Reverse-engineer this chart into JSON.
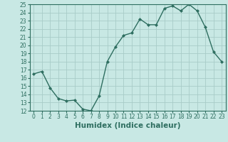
{
  "xlabel": "Humidex (Indice chaleur)",
  "x": [
    0,
    1,
    2,
    3,
    4,
    5,
    6,
    7,
    8,
    9,
    10,
    11,
    12,
    13,
    14,
    15,
    16,
    17,
    18,
    19,
    20,
    21,
    22,
    23
  ],
  "y": [
    16.5,
    16.8,
    14.8,
    13.5,
    13.2,
    13.3,
    12.2,
    12.0,
    13.8,
    18.0,
    19.8,
    21.2,
    21.5,
    23.2,
    22.5,
    22.5,
    24.5,
    24.8,
    24.2,
    25.0,
    24.2,
    22.2,
    19.2,
    18.0
  ],
  "line_color": "#2e6e60",
  "marker": "D",
  "marker_size": 2.0,
  "linewidth": 1.0,
  "bg_color": "#c8e8e4",
  "grid_color": "#a8ccc8",
  "ylim": [
    12,
    25
  ],
  "yticks": [
    12,
    13,
    14,
    15,
    16,
    17,
    18,
    19,
    20,
    21,
    22,
    23,
    24,
    25
  ],
  "xticks": [
    0,
    1,
    2,
    3,
    4,
    5,
    6,
    7,
    8,
    9,
    10,
    11,
    12,
    13,
    14,
    15,
    16,
    17,
    18,
    19,
    20,
    21,
    22,
    23
  ],
  "tick_fontsize": 5.5,
  "label_fontsize": 7.5
}
